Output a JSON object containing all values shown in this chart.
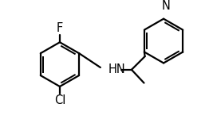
{
  "background_color": "#ffffff",
  "line_color": "#000000",
  "line_width": 1.6,
  "font_size": 10.5,
  "figsize": [
    2.67,
    1.55
  ],
  "dpi": 100,
  "xlim": [
    0,
    4.2
  ],
  "ylim": [
    0,
    2.4
  ]
}
